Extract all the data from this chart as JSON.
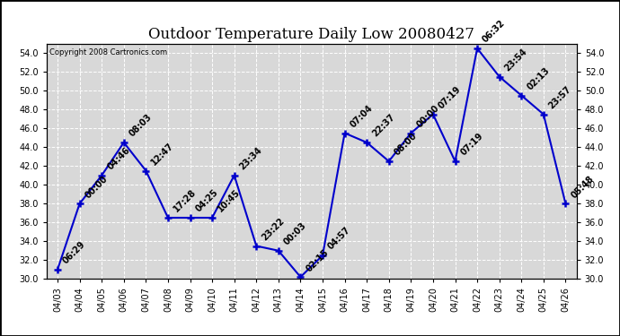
{
  "title": "Outdoor Temperature Daily Low 20080427",
  "copyright": "Copyright 2008 Cartronics.com",
  "x_labels": [
    "04/03",
    "04/04",
    "04/05",
    "04/06",
    "04/07",
    "04/08",
    "04/09",
    "04/10",
    "04/11",
    "04/12",
    "04/13",
    "04/14",
    "04/15",
    "04/16",
    "04/17",
    "04/18",
    "04/19",
    "04/20",
    "04/21",
    "04/22",
    "04/23",
    "04/24",
    "04/25",
    "04/26"
  ],
  "y_values": [
    31.0,
    38.0,
    41.0,
    44.5,
    41.5,
    36.5,
    36.5,
    36.5,
    41.0,
    33.5,
    33.0,
    30.2,
    32.5,
    45.5,
    44.5,
    42.5,
    45.5,
    47.5,
    42.5,
    54.5,
    51.5,
    49.5,
    47.5,
    38.0
  ],
  "point_labels": [
    "06:29",
    "00:00",
    "04:46",
    "08:03",
    "12:47",
    "17:28",
    "04:25",
    "10:45",
    "23:34",
    "23:22",
    "00:03",
    "02:15",
    "04:57",
    "07:04",
    "22:37",
    "08:00",
    "00:00",
    "07:19",
    "07:19",
    "06:32",
    "23:54",
    "02:13",
    "23:57",
    "05:48"
  ],
  "ylim_min": 30.0,
  "ylim_max": 55.0,
  "yticks": [
    30.0,
    32.0,
    34.0,
    36.0,
    38.0,
    40.0,
    42.0,
    44.0,
    46.0,
    48.0,
    50.0,
    52.0,
    54.0
  ],
  "line_color": "#0000cc",
  "marker_color": "#0000cc",
  "fig_bg_color": "#ffffff",
  "plot_bg_color": "#d8d8d8",
  "grid_color": "#ffffff",
  "title_fontsize": 12,
  "tick_fontsize": 7,
  "annotation_fontsize": 7
}
